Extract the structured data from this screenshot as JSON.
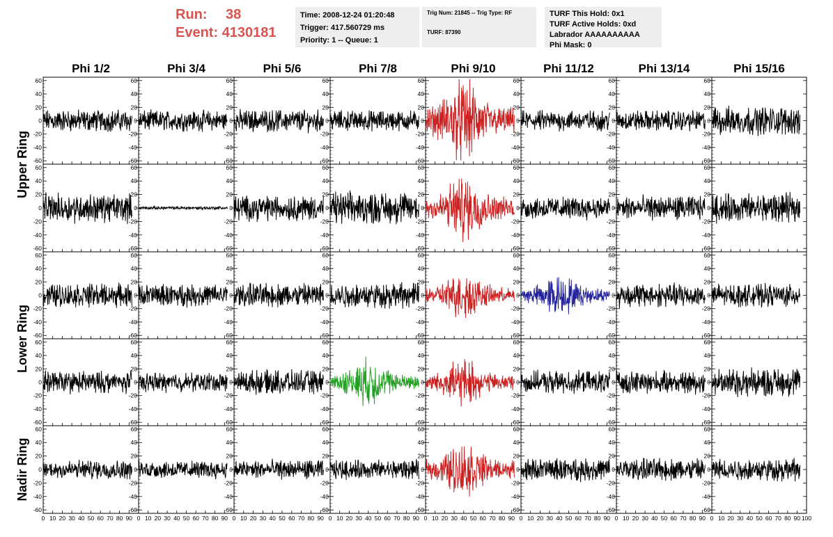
{
  "header": {
    "run_label": "Run:",
    "run_value": "38",
    "event_label": "Event:",
    "event_value": "4130181",
    "time_line": "Time: 2008-12-24 01:20:48",
    "trigger_line": "Trigger: 417.560729 ms",
    "priority_line": "Priority: 1 -- Queue: 1",
    "trig_line": "Trig Num: 21845 -- Trig Type: RF",
    "turf_line": "TURF: 87390",
    "turf_hold_line": "TURF This Hold: 0x1",
    "turf_active_line": "TURF Active Holds: 0xd",
    "labrador_line": "Labrador AAAAAAAAAA",
    "phi_mask_line": "Phi Mask: 0"
  },
  "colors": {
    "default": "#000000",
    "red": "#cc2222",
    "blue": "#22229b",
    "green": "#22a022",
    "header_text": "#d9534f",
    "info_bg": "#eeeeee"
  },
  "chart_data": {
    "type": "line",
    "columns": [
      "Phi 1/2",
      "Phi 3/4",
      "Phi 5/6",
      "Phi 7/8",
      "Phi 9/10",
      "Phi 11/12",
      "Phi 13/14",
      "Phi 15/16"
    ],
    "rows": [
      "Upper Ring",
      "Upper Ring",
      "Lower Ring",
      "Lower Ring",
      "Nadir Ring"
    ],
    "row_label_groups": [
      {
        "label": "Upper Ring",
        "rows": [
          0,
          1
        ]
      },
      {
        "label": "Lower Ring",
        "rows": [
          2,
          3
        ]
      },
      {
        "label": "Nadir Ring",
        "rows": [
          4,
          4
        ]
      }
    ],
    "xlim": [
      0,
      100
    ],
    "ylim": [
      -65,
      65
    ],
    "y_ticks": [
      -60,
      -40,
      -20,
      0,
      20,
      40,
      60
    ],
    "x_ticks": [
      0,
      10,
      20,
      30,
      40,
      50,
      60,
      70,
      80,
      90
    ],
    "x_ticks_last": [
      0,
      10,
      20,
      30,
      40,
      50,
      60,
      70,
      80,
      90,
      100
    ],
    "highlighted": [
      {
        "row": 0,
        "col": 4,
        "color": "red"
      },
      {
        "row": 1,
        "col": 4,
        "color": "red"
      },
      {
        "row": 2,
        "col": 4,
        "color": "red"
      },
      {
        "row": 2,
        "col": 5,
        "color": "blue"
      },
      {
        "row": 3,
        "col": 3,
        "color": "green"
      },
      {
        "row": 3,
        "col": 4,
        "color": "red"
      },
      {
        "row": 4,
        "col": 4,
        "color": "red"
      }
    ],
    "amplitudes": [
      [
        14,
        13,
        14,
        13,
        30,
        13,
        13,
        18
      ],
      [
        18,
        2,
        16,
        20,
        24,
        14,
        15,
        18
      ],
      [
        15,
        14,
        15,
        16,
        17,
        15,
        15,
        14
      ],
      [
        14,
        12,
        15,
        17,
        17,
        14,
        14,
        18
      ],
      [
        12,
        11,
        12,
        12,
        20,
        14,
        14,
        14
      ]
    ],
    "pulsed": [
      [
        0,
        0,
        0,
        0,
        1,
        0,
        0,
        0
      ],
      [
        0,
        0,
        0,
        0,
        1,
        0,
        0,
        0
      ],
      [
        0,
        0,
        0,
        0,
        1,
        1,
        0,
        0
      ],
      [
        0,
        0,
        0,
        1,
        1,
        0,
        0,
        0
      ],
      [
        0,
        0,
        0,
        0,
        1,
        0,
        0,
        0
      ]
    ],
    "samples_per_trace": 260
  }
}
